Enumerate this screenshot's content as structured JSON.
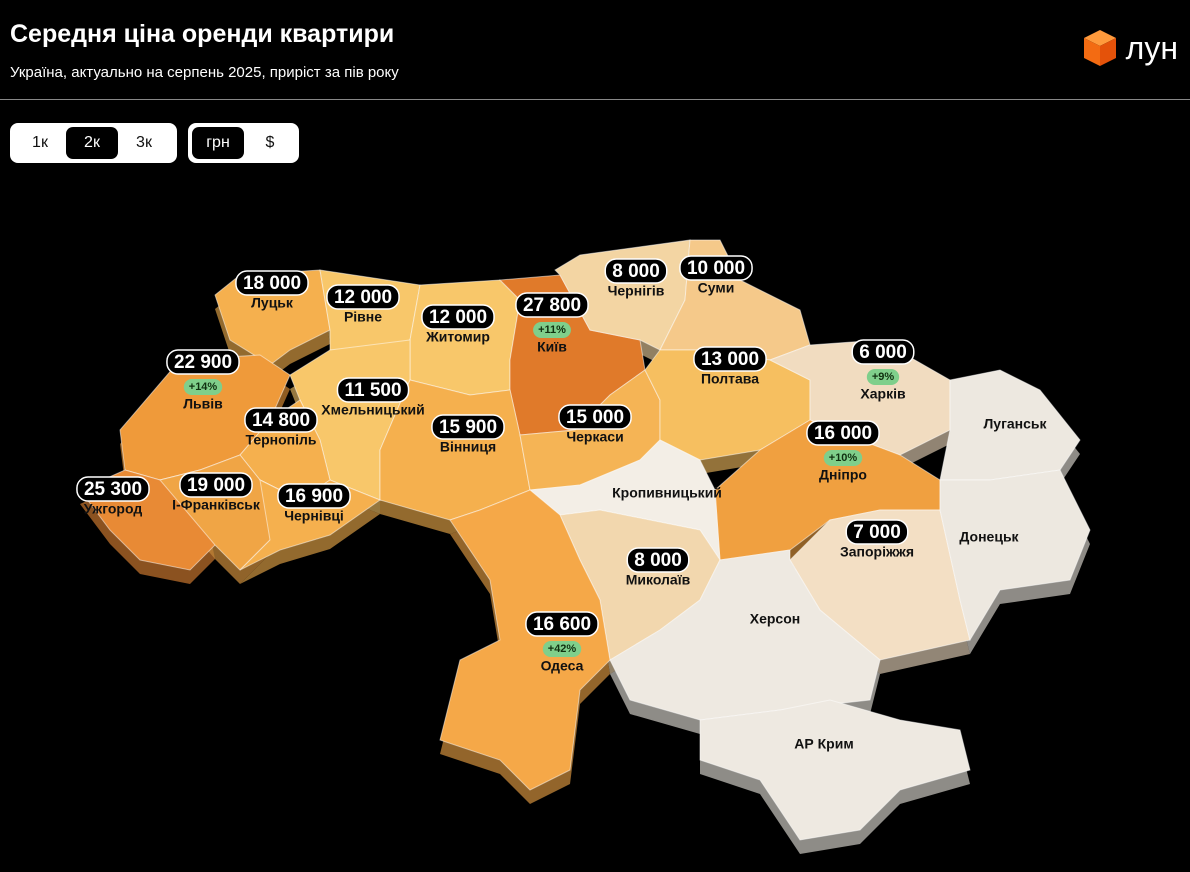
{
  "header": {
    "title": "Середня ціна оренди квартири",
    "subtitle": "Україна, актуально на серпень 2025, приріст за пів року",
    "logo": "лун"
  },
  "controls": {
    "rooms": [
      {
        "label": "1к",
        "selected": false
      },
      {
        "label": "2к",
        "selected": true
      },
      {
        "label": "3к",
        "selected": false
      }
    ],
    "currency": [
      {
        "label": "грн",
        "selected": true
      },
      {
        "label": "$",
        "selected": false
      }
    ]
  },
  "regions": [
    {
      "name": "Луцьк",
      "price": "18 000",
      "color": "#f5b04e"
    },
    {
      "name": "Рівне",
      "price": "12 000",
      "color": "#f8c76a"
    },
    {
      "name": "Житомир",
      "price": "12 000",
      "color": "#f8c76a"
    },
    {
      "name": "Київ",
      "price": "27 800",
      "growth": "+11%",
      "color": "#e07a2a"
    },
    {
      "name": "Чернігів",
      "price": "8 000",
      "color": "#f3d5a3"
    },
    {
      "name": "Суми",
      "price": "10 000",
      "color": "#f5c98a"
    },
    {
      "name": "Львів",
      "price": "22 900",
      "growth": "+14%",
      "color": "#ef9a3a"
    },
    {
      "name": "Хмельницький",
      "price": "11 500",
      "color": "#f8c76a"
    },
    {
      "name": "Тернопіль",
      "price": "14 800",
      "color": "#f5b04e"
    },
    {
      "name": "Вінниця",
      "price": "15 900",
      "color": "#f5b04e"
    },
    {
      "name": "Черкаси",
      "price": "15 000",
      "color": "#f5b455"
    },
    {
      "name": "Полтава",
      "price": "13 000",
      "color": "#f6bf60"
    },
    {
      "name": "Харків",
      "price": "6 000",
      "growth": "+9%",
      "color": "#f1dcc0"
    },
    {
      "name": "Дніпро",
      "price": "16 000",
      "growth": "+10%",
      "color": "#f0a040"
    },
    {
      "name": "Ужгород",
      "price": "25 300",
      "color": "#e88a35"
    },
    {
      "name": "І-Франківськ",
      "price": "19 000",
      "color": "#f0a545"
    },
    {
      "name": "Чернівці",
      "price": "16 900",
      "color": "#f5b04e"
    },
    {
      "name": "Кропивницький",
      "color": "#f3eee6"
    },
    {
      "name": "Миколаїв",
      "price": "8 000",
      "color": "#f2d7ae"
    },
    {
      "name": "Запоріжжя",
      "price": "7 000",
      "color": "#f3dfc4"
    },
    {
      "name": "Одеса",
      "price": "16 600",
      "growth": "+42%",
      "color": "#f5a848"
    },
    {
      "name": "Луганськ",
      "color": "#ede8e0"
    },
    {
      "name": "Донецьк",
      "color": "#ede8e0"
    },
    {
      "name": "Херсон",
      "color": "#eee9e1"
    },
    {
      "name": "АР Крим",
      "color": "#eee9e1"
    }
  ]
}
